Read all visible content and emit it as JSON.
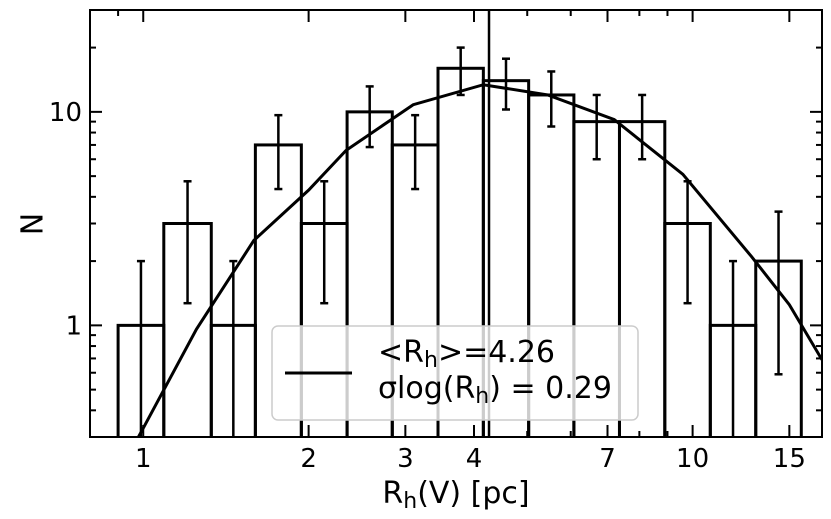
{
  "chart_data": {
    "type": "histogram",
    "xlabel": [
      "R",
      "h",
      "(V) [pc]"
    ],
    "ylabel": "N",
    "bins": [
      0.9,
      1.09,
      1.33,
      1.6,
      1.94,
      2.35,
      2.84,
      3.44,
      4.16,
      5.03,
      6.08,
      7.36,
      8.9,
      10.77,
      13.03,
      15.77
    ],
    "values": [
      1,
      3,
      1,
      7,
      3,
      10,
      7,
      16,
      14,
      12,
      9,
      9,
      3,
      1,
      2
    ],
    "errors": [
      1,
      1.73,
      1,
      2.65,
      1.73,
      3.16,
      2.65,
      4,
      3.74,
      3.46,
      3,
      3,
      1.73,
      1,
      1.41
    ],
    "color": "#000000",
    "fit": {
      "x": [
        0.98,
        1,
        1.25,
        1.59,
        2,
        2.34,
        3.1,
        4.16,
        5.45,
        7.2,
        9.6,
        12.8,
        15,
        17.2
      ],
      "values": [
        0.3,
        0.33,
        0.96,
        2.5,
        4.3,
        6.6,
        10.8,
        13.4,
        12,
        9.2,
        5.1,
        2.1,
        1.25,
        0.69
      ]
    },
    "mean_line": 4.26,
    "legend": [
      [
        "<R",
        "h",
        ">=4.26"
      ],
      [
        "σlog(R",
        "h",
        ") = 0.29"
      ]
    ],
    "legend_position": "lower center",
    "xscale": "log",
    "yscale": "log",
    "xlim": [
      0.8,
      17.2
    ],
    "ylim": [
      0.3,
      30
    ],
    "xticks": [
      1,
      2,
      3,
      4,
      7,
      10,
      15
    ],
    "xminorticks": [
      0.9,
      5,
      6,
      8,
      9
    ],
    "yticks": [
      1,
      10
    ],
    "yminorticks": [
      0.3,
      0.4,
      0.5,
      0.6,
      0.7,
      0.8,
      0.9,
      2,
      3,
      4,
      5,
      6,
      7,
      8,
      9,
      20,
      30
    ]
  }
}
